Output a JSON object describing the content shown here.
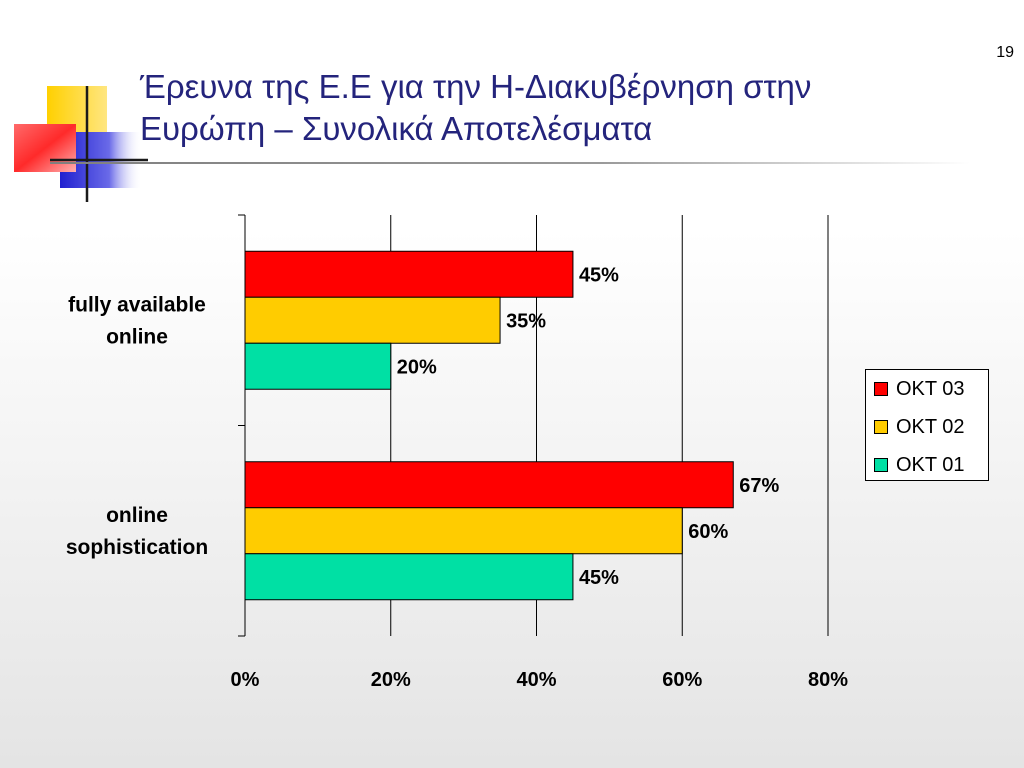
{
  "slide": {
    "page_number": "19",
    "title_lines": [
      "Έρευνα της Ε.Ε για την Η-Διακυβέρνηση στην",
      "Ευρώπη – Συνολικά Αποτελέσματα"
    ],
    "title_color": "#24247c"
  },
  "chart_data": {
    "type": "bar",
    "orientation": "horizontal",
    "categories": [
      "fully available online",
      "online sophistication"
    ],
    "category_label_lines": [
      [
        "fully available",
        "online"
      ],
      [
        "online",
        "sophistication"
      ]
    ],
    "series": [
      {
        "name": "OKT 03",
        "color": "#ff0000",
        "values": [
          45,
          67
        ],
        "labels": [
          "45%",
          "67%"
        ]
      },
      {
        "name": "OKT 02",
        "color": "#ffcc00",
        "values": [
          35,
          60
        ],
        "labels": [
          "35%",
          "60%"
        ]
      },
      {
        "name": "OKT 01",
        "color": "#00e0a4",
        "values": [
          20,
          45
        ],
        "labels": [
          "20%",
          "45%"
        ]
      }
    ],
    "xlim": [
      0,
      80
    ],
    "xticks": [
      0,
      20,
      40,
      60,
      80
    ],
    "xtick_labels": [
      "0%",
      "20%",
      "40%",
      "60%",
      "80%"
    ],
    "grid": true,
    "legend_position": "right",
    "title": "",
    "xlabel": "",
    "ylabel": ""
  }
}
